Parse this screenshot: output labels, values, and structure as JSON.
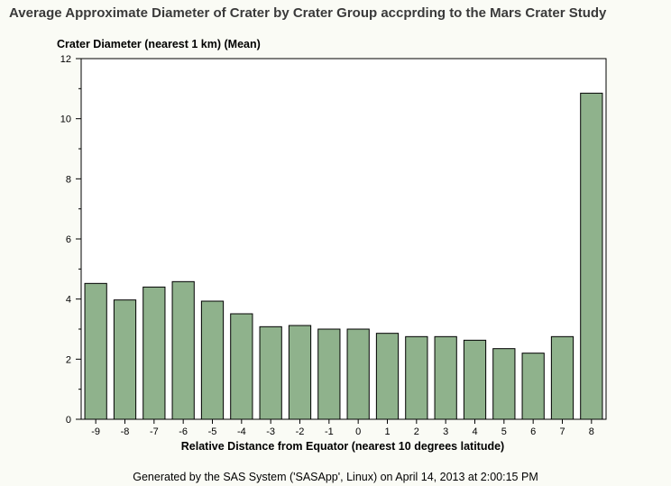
{
  "title": "Average Approximate Diameter of Crater by Crater Group accprding to the Mars Crater Study",
  "footer": "Generated by the SAS System ('SASApp', Linux) on April 14, 2013 at 2:00:15 PM",
  "colors": {
    "bar_fill": "#8fb28c",
    "bar_stroke": "#000000",
    "background": "#fafbf5",
    "plot_background": "#ffffff"
  },
  "chart_data": {
    "type": "bar",
    "title": "Average Approximate Diameter of Crater by Crater Group accprding to the Mars Crater Study",
    "xlabel": "Relative Distance from Equator (nearest 10 degrees latitude)",
    "ylabel": "Crater Diameter (nearest 1 km) (Mean)",
    "categories": [
      "-9",
      "-8",
      "-7",
      "-6",
      "-5",
      "-4",
      "-3",
      "-2",
      "-1",
      "0",
      "1",
      "2",
      "3",
      "4",
      "5",
      "6",
      "7",
      "8"
    ],
    "values": [
      4.52,
      3.97,
      4.4,
      4.58,
      3.93,
      3.51,
      3.08,
      3.12,
      3.0,
      3.0,
      2.86,
      2.75,
      2.75,
      2.63,
      2.35,
      2.2,
      2.75,
      10.85
    ],
    "ylim": [
      0,
      12
    ],
    "yticks": [
      0,
      2,
      4,
      6,
      8,
      10,
      12
    ],
    "grid": false,
    "legend": "none"
  }
}
